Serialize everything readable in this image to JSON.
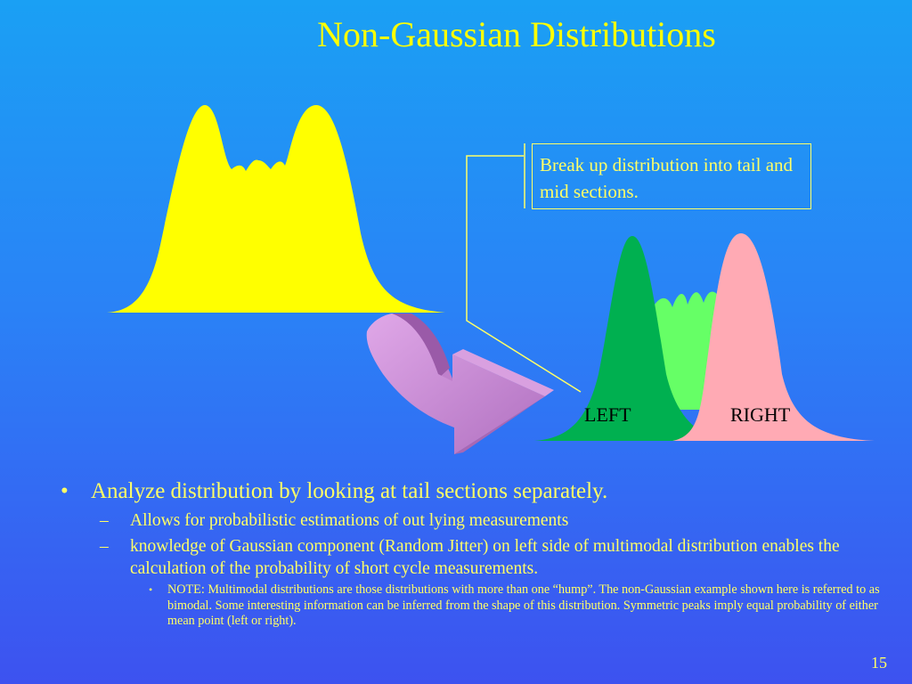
{
  "slide": {
    "title": "Non-Gaussian Distributions",
    "page_number": "15"
  },
  "diagram": {
    "callout_text": "Break up distribution into tail and mid sections.",
    "label_left": "LEFT",
    "label_right": "RIGHT",
    "colors": {
      "source_distribution": "#ffff00",
      "left_tail": "#00b050",
      "mid_section": "#66ff66",
      "right_tail": "#ffaab4",
      "arrow": "#cc88cc",
      "callout": "#ffff66"
    }
  },
  "bullets": {
    "main": "Analyze distribution by looking at tail sections separately.",
    "sub1": "Allows for probabilistic estimations of out lying measurements",
    "sub2": "knowledge of Gaussian component (Random Jitter) on left side of multimodal distribution enables the calculation of the  probability of short cycle measurements.",
    "note": "NOTE:  Multimodal distributions are those distributions with more than one “hump”.  The non-Gaussian example shown here is referred to as bimodal.  Some interesting information can be inferred from the shape of this distribution.   Symmetric peaks imply equal probability of either mean point (left or right).",
    "marks": {
      "bullet": "•",
      "dash": "–"
    }
  }
}
